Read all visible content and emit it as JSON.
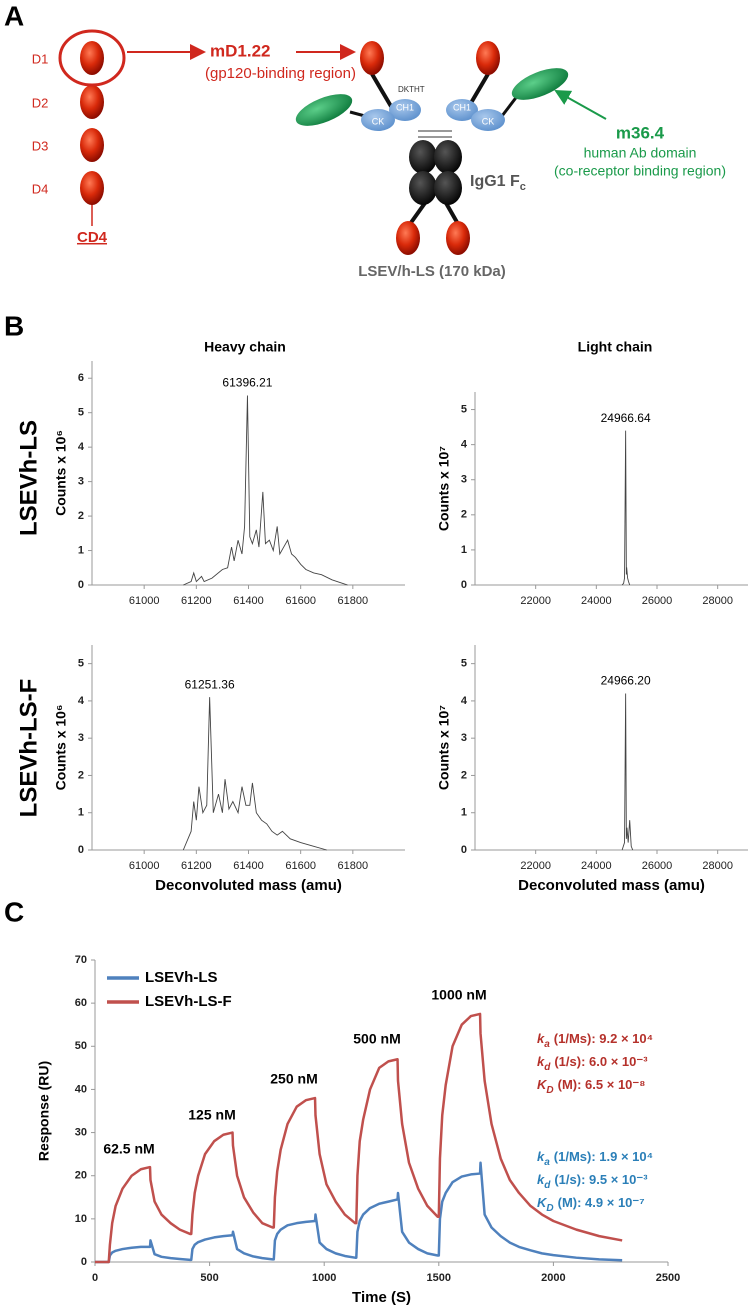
{
  "panels": [
    "A",
    "B",
    "C"
  ],
  "diagram": {
    "domains": [
      "D1",
      "D2",
      "D3",
      "D4"
    ],
    "cd4": "CD4",
    "md1": {
      "name": "mD1.22",
      "desc": "(gp120-binding region)"
    },
    "hinge": "DKTHT",
    "constant": [
      "CH1",
      "CK",
      "CH1",
      "CK"
    ],
    "fc": {
      "label": "IgG1 F",
      "sub": "c"
    },
    "m36": {
      "name": "m36.4",
      "desc": [
        "human Ab domain",
        "(co-receptor binding region)"
      ]
    },
    "caption": "LSEV/h-LS (170 kDa)"
  },
  "rows": [
    "LSEVh-LS",
    "LSEVh-LS-F"
  ],
  "columns": [
    "Heavy chain",
    "Light chain"
  ],
  "chart_data": [
    {
      "type": "line",
      "ylabel": "Counts x 10⁶",
      "annotation": "61396.21",
      "color": "#444444",
      "xlim": [
        60800,
        62000
      ],
      "xticks": [
        61000,
        61200,
        61400,
        61600,
        61800
      ],
      "ylim": [
        0,
        6.5
      ],
      "yticks": [
        0,
        1,
        2,
        3,
        4,
        5,
        6
      ],
      "x": [
        61150,
        61180,
        61190,
        61200,
        61220,
        61230,
        61260,
        61300,
        61320,
        61335,
        61345,
        61360,
        61375,
        61385,
        61396,
        61405,
        61415,
        61430,
        61440,
        61455,
        61465,
        61480,
        61495,
        61510,
        61520,
        61535,
        61550,
        61565,
        61580,
        61600,
        61620,
        61650,
        61680,
        61720,
        61760,
        61780
      ],
      "values": [
        0,
        0.1,
        0.35,
        0.1,
        0.25,
        0.1,
        0.2,
        0.45,
        0.5,
        1.1,
        0.7,
        1.3,
        0.9,
        1.7,
        5.5,
        1.4,
        1.2,
        1.6,
        1.1,
        2.7,
        1.2,
        1.3,
        1.0,
        1.7,
        0.9,
        1.1,
        1.3,
        0.9,
        0.8,
        0.6,
        0.45,
        0.35,
        0.3,
        0.15,
        0.05,
        0
      ]
    },
    {
      "type": "line",
      "ylabel": "Counts x 10⁷",
      "annotation": "24966.64",
      "color": "#444444",
      "xlim": [
        20000,
        29000
      ],
      "xticks": [
        22000,
        24000,
        26000,
        28000
      ],
      "ylim": [
        0,
        5.5
      ],
      "yticks": [
        0,
        1,
        2,
        3,
        4,
        5
      ],
      "x": [
        24850,
        24900,
        24930,
        24966,
        24990,
        25000,
        25030,
        25060,
        25100
      ],
      "values": [
        0,
        0.05,
        0.2,
        4.4,
        0.3,
        0.5,
        0.2,
        0.1,
        0
      ]
    },
    {
      "type": "line",
      "ylabel": "Counts x 10⁶",
      "xlabel": "Deconvoluted mass (amu)",
      "annotation": "61251.36",
      "color": "#444444",
      "xlim": [
        60800,
        62000
      ],
      "xticks": [
        61000,
        61200,
        61400,
        61600,
        61800
      ],
      "ylim": [
        0,
        5.5
      ],
      "yticks": [
        0,
        1,
        2,
        3,
        4,
        5
      ],
      "x": [
        61150,
        61180,
        61190,
        61200,
        61210,
        61225,
        61240,
        61251,
        61265,
        61285,
        61300,
        61310,
        61325,
        61340,
        61360,
        61375,
        61390,
        61405,
        61415,
        61430,
        61450,
        61470,
        61490,
        61510,
        61530,
        61560,
        61600,
        61650,
        61700
      ],
      "values": [
        0,
        0.5,
        1.3,
        0.8,
        1.7,
        1.0,
        1.2,
        4.1,
        1.0,
        1.5,
        1.0,
        1.9,
        1.1,
        1.3,
        1.0,
        1.7,
        1.2,
        1.2,
        1.8,
        1.0,
        0.8,
        0.7,
        0.5,
        0.4,
        0.5,
        0.3,
        0.2,
        0.1,
        0
      ]
    },
    {
      "type": "line",
      "ylabel": "Counts x 10⁷",
      "xlabel": "Deconvoluted mass (amu)",
      "annotation": "24966.20",
      "color": "#444444",
      "xlim": [
        20000,
        29000
      ],
      "xticks": [
        22000,
        24000,
        26000,
        28000
      ],
      "ylim": [
        0,
        5.5
      ],
      "yticks": [
        0,
        1,
        2,
        3,
        4,
        5
      ],
      "x": [
        24850,
        24930,
        24966,
        24990,
        25010,
        25050,
        25100,
        25150,
        25200
      ],
      "values": [
        0,
        0.2,
        4.2,
        0.3,
        0.6,
        0.2,
        0.8,
        0.1,
        0
      ]
    },
    {
      "type": "line",
      "xlabel": "Time (S)",
      "ylabel": "Response (RU)",
      "xlim": [
        0,
        2500
      ],
      "xticks": [
        0,
        500,
        1000,
        1500,
        2000,
        2500
      ],
      "ylim": [
        0,
        70
      ],
      "yticks": [
        0,
        10,
        20,
        30,
        40,
        50,
        60,
        70
      ],
      "x": [
        0,
        55,
        60,
        65,
        75,
        90,
        120,
        160,
        200,
        240,
        242,
        260,
        290,
        330,
        370,
        415,
        420,
        425,
        435,
        450,
        480,
        520,
        560,
        600,
        602,
        620,
        650,
        690,
        730,
        775,
        780,
        785,
        795,
        810,
        840,
        880,
        920,
        960,
        962,
        980,
        1010,
        1050,
        1090,
        1135,
        1140,
        1145,
        1155,
        1170,
        1200,
        1240,
        1280,
        1320,
        1322,
        1340,
        1370,
        1410,
        1450,
        1495,
        1500,
        1505,
        1515,
        1530,
        1560,
        1600,
        1640,
        1680,
        1682,
        1700,
        1730,
        1770,
        1810,
        1850,
        1900,
        1950,
        2000,
        2100,
        2200,
        2300
      ],
      "series": [
        {
          "name": "LSEVh-LS",
          "color": "#4f81bd",
          "values": [
            0,
            0,
            0,
            1.5,
            2.2,
            2.6,
            3,
            3.3,
            3.5,
            3.5,
            5,
            1.8,
            1.2,
            0.9,
            0.7,
            0.5,
            0.5,
            3,
            4,
            4.6,
            5.2,
            5.7,
            6,
            6.2,
            7,
            3,
            2,
            1.3,
            0.9,
            0.6,
            0.6,
            5,
            6.5,
            7.5,
            8.5,
            9,
            9.3,
            9.5,
            11,
            4.5,
            3,
            2,
            1.4,
            1,
            1,
            7,
            9.5,
            11,
            12.5,
            13.5,
            14,
            14.5,
            16,
            7,
            4.5,
            3,
            2,
            1.5,
            1.5,
            10,
            14,
            16,
            18.5,
            19.8,
            20.3,
            20.5,
            23,
            11,
            8,
            6,
            4.5,
            3.5,
            2.7,
            2,
            1.6,
            1,
            0.6,
            0.4
          ]
        },
        {
          "name": "LSEVh-LS-F",
          "color": "#c0504d",
          "values": [
            0,
            0,
            0,
            4,
            9,
            13,
            17,
            20,
            21.5,
            22,
            19,
            14,
            11,
            9,
            7.5,
            6.5,
            6.5,
            11,
            16,
            20,
            25,
            28,
            29.5,
            30,
            27,
            20,
            15,
            11.5,
            9,
            8,
            8,
            15,
            21,
            26,
            32,
            36,
            37.5,
            38,
            34,
            25,
            18,
            14,
            11,
            9,
            9,
            20,
            28,
            33,
            40,
            45,
            46.5,
            47,
            42,
            32,
            23,
            17,
            13,
            10.5,
            10.5,
            24,
            34,
            41,
            50,
            55,
            57,
            57.5,
            53,
            42,
            32,
            24,
            19,
            16,
            13,
            11,
            9.5,
            7.5,
            6,
            5
          ]
        }
      ],
      "annotations": [
        "62.5 nM",
        "125 nM",
        "250 nM",
        "500 nM",
        "1000 nM"
      ],
      "kinetics": [
        {
          "color": "#b5312b",
          "lines": [
            {
              "k": "k",
              "sub": "a",
              "text": "(1/Ms): 9.2 × 10⁴"
            },
            {
              "k": "k",
              "sub": "d",
              "text": "(1/s): 6.0 × 10⁻³"
            },
            {
              "k": "K",
              "sub": "D",
              "text": "(M): 6.5 × 10⁻⁸"
            }
          ]
        },
        {
          "color": "#2b7fb8",
          "lines": [
            {
              "k": "k",
              "sub": "a",
              "text": "(1/Ms): 1.9 × 10⁴"
            },
            {
              "k": "k",
              "sub": "d",
              "text": "(1/s): 9.5 × 10⁻³"
            },
            {
              "k": "K",
              "sub": "D",
              "text": "(M): 4.9 × 10⁻⁷"
            }
          ]
        }
      ]
    }
  ]
}
